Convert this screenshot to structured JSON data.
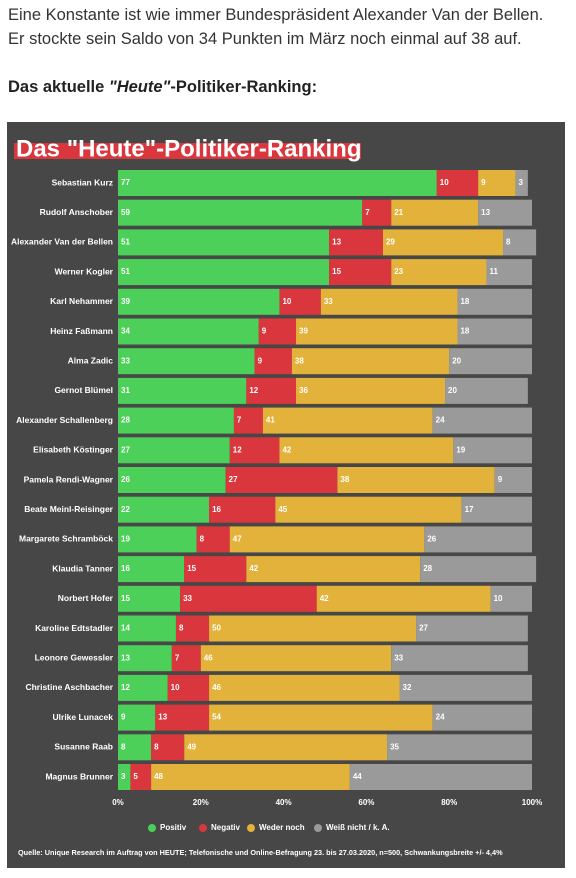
{
  "intro": [
    "Eine Konstante ist wie immer Bundespräsident Alexander Van der Bellen.",
    "Er stockte sein Saldo von 34 Punkten im März noch einmal auf 38 auf."
  ],
  "heading": [
    "Das aktuelle ",
    "\"Heute\"",
    "-Politiker-Ranking:"
  ],
  "chart_data": {
    "type": "bar",
    "orientation": "horizontal",
    "stacked": true,
    "title": "Das \"Heute\"-Politiker-Ranking",
    "categories": [
      "Sebastian Kurz",
      "Rudolf Anschober",
      "Alexander Van der Bellen",
      "Werner Kogler",
      "Karl Nehammer",
      "Heinz Faßmann",
      "Alma Zadic",
      "Gernot Blümel",
      "Alexander Schallenberg",
      "Elisabeth Köstinger",
      "Pamela Rendi-Wagner",
      "Beate Meinl-Reisinger",
      "Margarete Schramböck",
      "Klaudia Tanner",
      "Norbert Hofer",
      "Karoline Edtstadler",
      "Leonore Gewessler",
      "Christine Aschbacher",
      "Ulrike Lunacek",
      "Susanne Raab",
      "Magnus Brunner"
    ],
    "series": [
      {
        "name": "Positiv",
        "color": "#4cd05a",
        "values": [
          77,
          59,
          51,
          51,
          39,
          34,
          33,
          31,
          28,
          27,
          26,
          22,
          19,
          16,
          15,
          14,
          13,
          12,
          9,
          8,
          3
        ]
      },
      {
        "name": "Negativ",
        "color": "#d9373d",
        "values": [
          10,
          7,
          13,
          15,
          10,
          9,
          9,
          12,
          7,
          12,
          27,
          16,
          8,
          15,
          33,
          8,
          7,
          10,
          13,
          8,
          5
        ]
      },
      {
        "name": "Weder noch",
        "color": "#e3b23a",
        "values": [
          9,
          21,
          29,
          23,
          33,
          39,
          38,
          36,
          41,
          42,
          38,
          45,
          47,
          42,
          42,
          50,
          46,
          46,
          54,
          49,
          48
        ]
      },
      {
        "name": "Weiß nicht / k. A.",
        "color": "#9a9a9a",
        "values": [
          3,
          13,
          8,
          11,
          18,
          18,
          20,
          20,
          24,
          19,
          9,
          17,
          26,
          28,
          10,
          27,
          33,
          32,
          24,
          35,
          44
        ]
      }
    ],
    "xlim": [
      0,
      100
    ],
    "xticks": [
      {
        "value": 0,
        "label": "0%"
      },
      {
        "value": 20,
        "label": "20%"
      },
      {
        "value": 40,
        "label": "40%"
      },
      {
        "value": 60,
        "label": "60%"
      },
      {
        "value": 80,
        "label": "80%"
      },
      {
        "value": 100,
        "label": "100%"
      }
    ],
    "source": "Quelle: Unique Research im Auftrag von HEUTE; Telefonische und Online-Befragung 23. bis 27.03.2020, n=500, Schwankungsbreite +/- 4,4%"
  }
}
